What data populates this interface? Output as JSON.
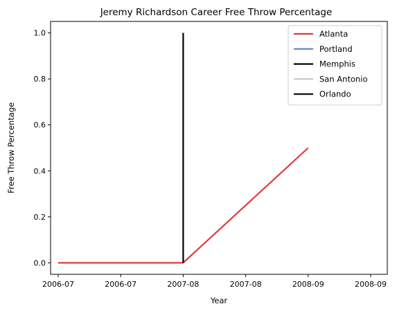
{
  "chart_data": {
    "type": "line",
    "title": "Jeremy Richardson Career Free Throw Percentage",
    "xlabel": "Year",
    "ylabel": "Free Throw Percentage",
    "x_ticks": [
      "2006-07",
      "2006-07",
      "2007-08",
      "2007-08",
      "2008-09",
      "2008-09"
    ],
    "ylim": [
      -0.05,
      1.05
    ],
    "y_ticks": [
      "0.0",
      "0.2",
      "0.4",
      "0.6",
      "0.8",
      "1.0"
    ],
    "grid": false,
    "legend_position": "upper right",
    "series": [
      {
        "name": "Atlanta",
        "color": "#e03a3e",
        "points": [
          [
            0,
            0.0
          ],
          [
            2.0,
            0.0
          ],
          [
            4.0,
            0.5
          ]
        ]
      },
      {
        "name": "Portland",
        "color": "#5b86b8",
        "points": []
      },
      {
        "name": "Memphis",
        "color": "#000000",
        "points": [
          [
            2.0,
            0.0
          ],
          [
            2.0,
            1.0
          ]
        ]
      },
      {
        "name": "San Antonio",
        "color": "#c4c8cb",
        "points": []
      },
      {
        "name": "Orlando",
        "color": "#000000",
        "points": []
      }
    ]
  }
}
